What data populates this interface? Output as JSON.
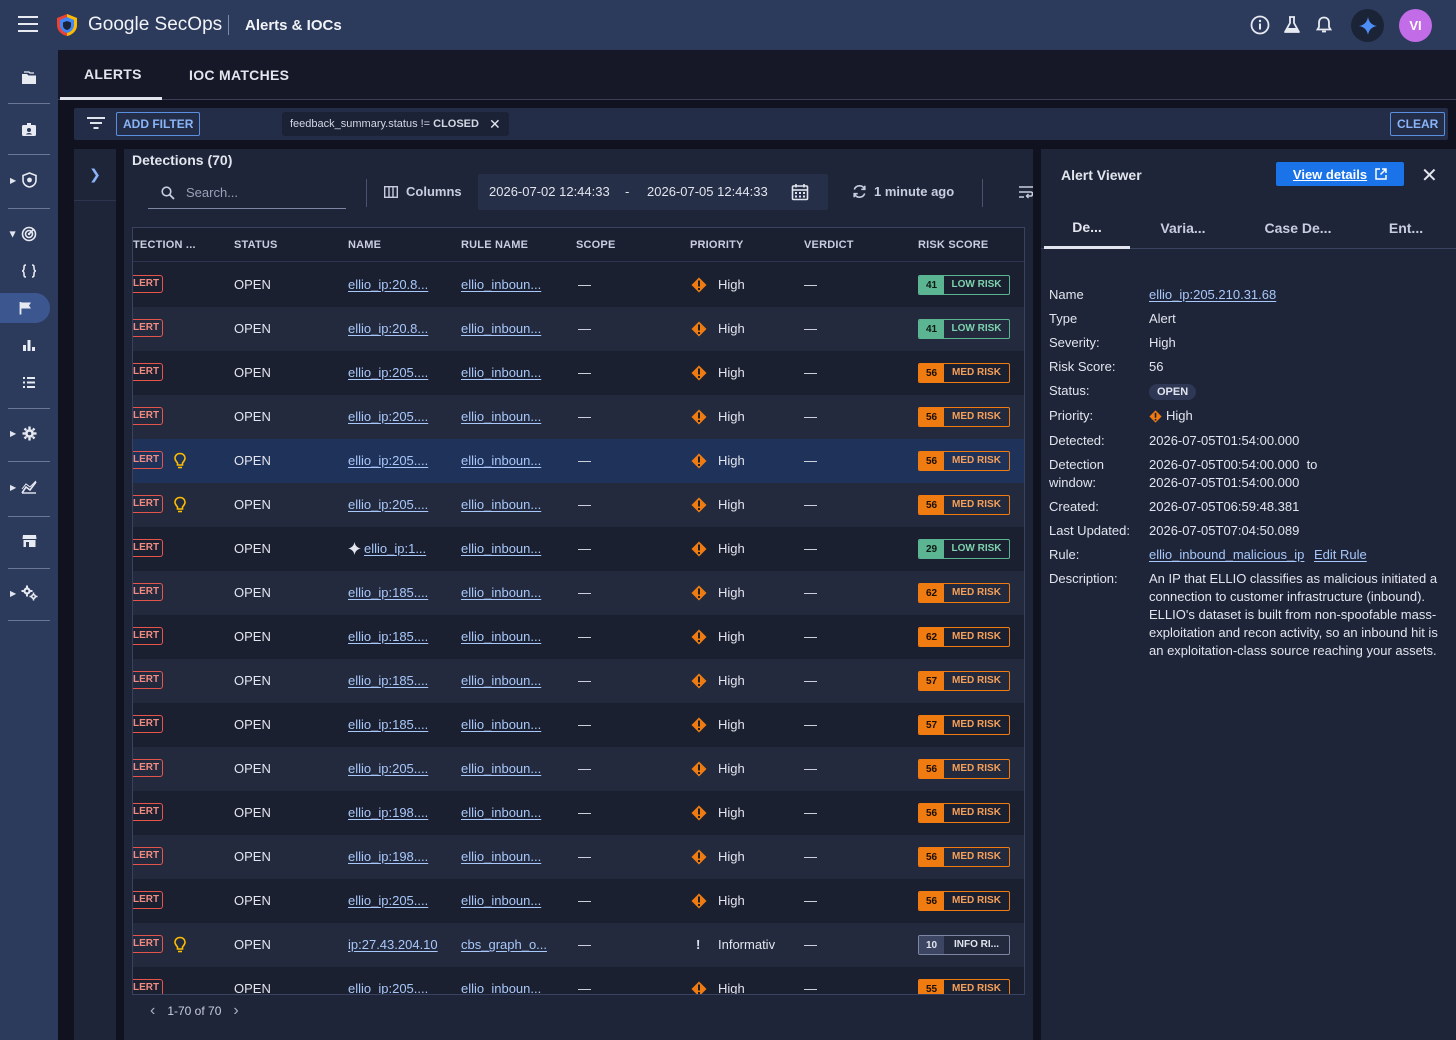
{
  "header": {
    "brand": "Google SecOps",
    "page_title": "Alerts & IOCs",
    "avatar_initials": "VI"
  },
  "tabs": [
    {
      "label": "ALERTS",
      "active": true
    },
    {
      "label": "IOC MATCHES",
      "active": false
    }
  ],
  "filter": {
    "add_filter_label": "ADD FILTER",
    "chip_field": "feedback_summary.status != ",
    "chip_value": "CLOSED",
    "clear_label": "CLEAR"
  },
  "detections": {
    "title": "Detections (70)",
    "search_placeholder": "Search...",
    "columns_label": "Columns",
    "date_from": "2026-07-02 12:44:33",
    "date_sep": "-",
    "date_to": "2026-07-05 12:44:33",
    "refresh_label": "1 minute ago",
    "pagination": "1-70 of 70"
  },
  "table": {
    "headers": [
      "TECTION ...",
      "STATUS",
      "NAME",
      "RULE NAME",
      "SCOPE",
      "PRIORITY",
      "VERDICT",
      "RISK SCORE"
    ],
    "rows": [
      {
        "type": "LERT",
        "bulb": false,
        "status": "OPEN",
        "name": "ellio_ip:20.8...",
        "ai": false,
        "rule": "ellio_inboun...",
        "scope": "—",
        "priority": "High",
        "verdict": "—",
        "risk": "41",
        "risk_label": "LOW RISK",
        "risk_level": "low",
        "selected": false
      },
      {
        "type": "LERT",
        "bulb": false,
        "status": "OPEN",
        "name": "ellio_ip:20.8...",
        "ai": false,
        "rule": "ellio_inboun...",
        "scope": "—",
        "priority": "High",
        "verdict": "—",
        "risk": "41",
        "risk_label": "LOW RISK",
        "risk_level": "low",
        "selected": false
      },
      {
        "type": "LERT",
        "bulb": false,
        "status": "OPEN",
        "name": "ellio_ip:205....",
        "ai": false,
        "rule": "ellio_inboun...",
        "scope": "—",
        "priority": "High",
        "verdict": "—",
        "risk": "56",
        "risk_label": "MED RISK",
        "risk_level": "med",
        "selected": false
      },
      {
        "type": "LERT",
        "bulb": false,
        "status": "OPEN",
        "name": "ellio_ip:205....",
        "ai": false,
        "rule": "ellio_inboun...",
        "scope": "—",
        "priority": "High",
        "verdict": "—",
        "risk": "56",
        "risk_label": "MED RISK",
        "risk_level": "med",
        "selected": false
      },
      {
        "type": "LERT",
        "bulb": true,
        "status": "OPEN",
        "name": "ellio_ip:205....",
        "ai": false,
        "rule": "ellio_inboun...",
        "scope": "—",
        "priority": "High",
        "verdict": "—",
        "risk": "56",
        "risk_label": "MED RISK",
        "risk_level": "med",
        "selected": true
      },
      {
        "type": "LERT",
        "bulb": true,
        "status": "OPEN",
        "name": "ellio_ip:205....",
        "ai": false,
        "rule": "ellio_inboun...",
        "scope": "—",
        "priority": "High",
        "verdict": "—",
        "risk": "56",
        "risk_label": "MED RISK",
        "risk_level": "med",
        "selected": false
      },
      {
        "type": "LERT",
        "bulb": false,
        "status": "OPEN",
        "name": "ellio_ip:1...",
        "ai": true,
        "rule": "ellio_inboun...",
        "scope": "—",
        "priority": "High",
        "verdict": "—",
        "risk": "29",
        "risk_label": "LOW RISK",
        "risk_level": "low",
        "selected": false
      },
      {
        "type": "LERT",
        "bulb": false,
        "status": "OPEN",
        "name": "ellio_ip:185....",
        "ai": false,
        "rule": "ellio_inboun...",
        "scope": "—",
        "priority": "High",
        "verdict": "—",
        "risk": "62",
        "risk_label": "MED RISK",
        "risk_level": "med",
        "selected": false
      },
      {
        "type": "LERT",
        "bulb": false,
        "status": "OPEN",
        "name": "ellio_ip:185....",
        "ai": false,
        "rule": "ellio_inboun...",
        "scope": "—",
        "priority": "High",
        "verdict": "—",
        "risk": "62",
        "risk_label": "MED RISK",
        "risk_level": "med",
        "selected": false
      },
      {
        "type": "LERT",
        "bulb": false,
        "status": "OPEN",
        "name": "ellio_ip:185....",
        "ai": false,
        "rule": "ellio_inboun...",
        "scope": "—",
        "priority": "High",
        "verdict": "—",
        "risk": "57",
        "risk_label": "MED RISK",
        "risk_level": "med",
        "selected": false
      },
      {
        "type": "LERT",
        "bulb": false,
        "status": "OPEN",
        "name": "ellio_ip:185....",
        "ai": false,
        "rule": "ellio_inboun...",
        "scope": "—",
        "priority": "High",
        "verdict": "—",
        "risk": "57",
        "risk_label": "MED RISK",
        "risk_level": "med",
        "selected": false
      },
      {
        "type": "LERT",
        "bulb": false,
        "status": "OPEN",
        "name": "ellio_ip:205....",
        "ai": false,
        "rule": "ellio_inboun...",
        "scope": "—",
        "priority": "High",
        "verdict": "—",
        "risk": "56",
        "risk_label": "MED RISK",
        "risk_level": "med",
        "selected": false
      },
      {
        "type": "LERT",
        "bulb": false,
        "status": "OPEN",
        "name": "ellio_ip:198....",
        "ai": false,
        "rule": "ellio_inboun...",
        "scope": "—",
        "priority": "High",
        "verdict": "—",
        "risk": "56",
        "risk_label": "MED RISK",
        "risk_level": "med",
        "selected": false
      },
      {
        "type": "LERT",
        "bulb": false,
        "status": "OPEN",
        "name": "ellio_ip:198....",
        "ai": false,
        "rule": "ellio_inboun...",
        "scope": "—",
        "priority": "High",
        "verdict": "—",
        "risk": "56",
        "risk_label": "MED RISK",
        "risk_level": "med",
        "selected": false
      },
      {
        "type": "LERT",
        "bulb": false,
        "status": "OPEN",
        "name": "ellio_ip:205....",
        "ai": false,
        "rule": "ellio_inboun...",
        "scope": "—",
        "priority": "High",
        "verdict": "—",
        "risk": "56",
        "risk_label": "MED RISK",
        "risk_level": "med",
        "selected": false
      },
      {
        "type": "LERT",
        "bulb": true,
        "status": "OPEN",
        "name": "ip:27.43.204.10",
        "ai": false,
        "rule": "cbs_graph_o...",
        "scope": "—",
        "priority": "Informativ",
        "verdict": "—",
        "risk": "10",
        "risk_label": "INFO RI...",
        "risk_level": "info",
        "selected": false
      },
      {
        "type": "LERT",
        "bulb": false,
        "status": "OPEN",
        "name": "ellio_ip:205....",
        "ai": false,
        "rule": "ellio_inboun...",
        "scope": "—",
        "priority": "High",
        "verdict": "—",
        "risk": "55",
        "risk_label": "MED RISK",
        "risk_level": "med",
        "selected": false
      }
    ]
  },
  "viewer": {
    "title": "Alert Viewer",
    "view_details_label": "View details",
    "tabs": [
      "De...",
      "Varia...",
      "Case De...",
      "Ent..."
    ],
    "fields": {
      "name_k": "Name",
      "name_v": "ellio_ip:205.210.31.68",
      "type_k": "Type",
      "type_v": "Alert",
      "severity_k": "Severity:",
      "severity_v": "High",
      "risk_k": "Risk Score:",
      "risk_v": "56",
      "status_k": "Status:",
      "status_v": "OPEN",
      "priority_k": "Priority:",
      "priority_v": "High",
      "detected_k": "Detected:",
      "detected_v": "2026-07-05T01:54:00.000",
      "window_k": "Detection window:",
      "window_v1": "2026-07-05T00:54:00.000  to",
      "window_v2": "2026-07-05T01:54:00.000",
      "created_k": "Created:",
      "created_v": "2026-07-05T06:59:48.381",
      "updated_k": "Last Updated:",
      "updated_v": "2026-07-05T07:04:50.089",
      "rule_k": "Rule:",
      "rule_v": "ellio_inbound_malicious_ip",
      "edit_rule": "Edit Rule",
      "desc_k": "Description:",
      "desc_v": "An IP that ELLIO classifies as malicious initiated a connection to customer infrastructure (inbound). ELLIO's dataset is built from non-spoofable mass-exploitation and recon activity, so an inbound hit is an exploitation-class source reaching your assets."
    }
  },
  "colors": {
    "topbar": "#2c3a5c",
    "link": "#a8c7fa",
    "primary_button": "#1a73e8",
    "med_risk": "#f07c11",
    "low_risk": "#5bb492",
    "alert_red": "#e7554a"
  }
}
